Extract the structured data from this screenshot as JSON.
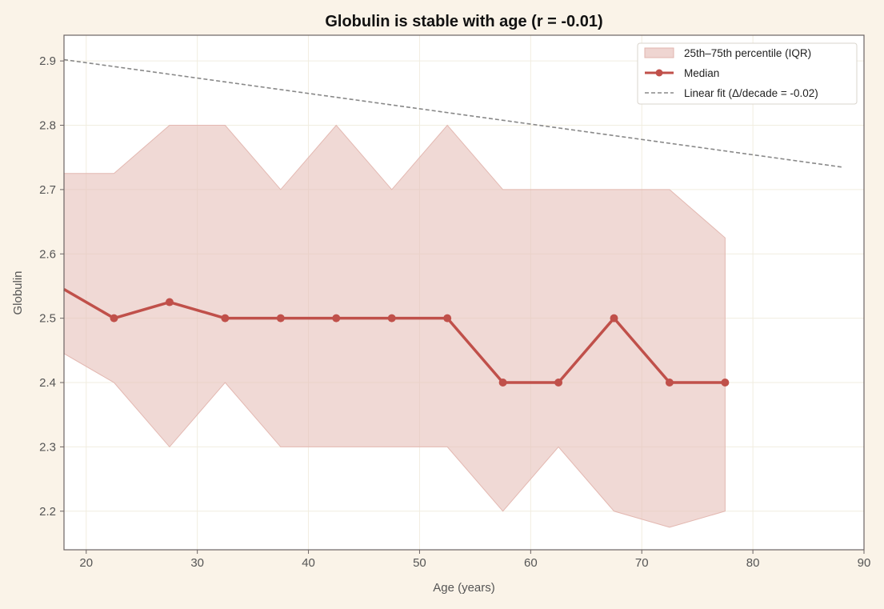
{
  "chart_data": {
    "type": "line",
    "title": "Globulin is stable with age (r = -0.01)",
    "xlabel": "Age (years)",
    "ylabel": "Globulin",
    "xlim": [
      18,
      90
    ],
    "ylim": [
      2.14,
      2.94
    ],
    "xticks": [
      20,
      30,
      40,
      50,
      60,
      70,
      80,
      90
    ],
    "yticks": [
      2.2,
      2.3,
      2.4,
      2.5,
      2.6,
      2.7,
      2.8,
      2.9
    ],
    "grid": true,
    "legend_position": "top-right",
    "colors": {
      "background": "#faf3e8",
      "plot_background": "#ffffff",
      "median": "#c0504a",
      "iqr_fill": "#e6bfb9",
      "fit": "#888888",
      "grid": "#f1ede0",
      "axis": "#6b6363"
    },
    "x": [
      18,
      22.5,
      27.5,
      32.5,
      37.5,
      42.5,
      47.5,
      52.5,
      57.5,
      62.5,
      67.5,
      72.5,
      77.5
    ],
    "series": [
      {
        "name": "25th–75th percentile (IQR)",
        "kind": "band",
        "lower": [
          2.445,
          2.4,
          2.3,
          2.4,
          2.3,
          2.3,
          2.3,
          2.3,
          2.2,
          2.3,
          2.2,
          2.175,
          2.2
        ],
        "upper": [
          2.725,
          2.725,
          2.8,
          2.8,
          2.7,
          2.8,
          2.7,
          2.8,
          2.7,
          2.7,
          2.7,
          2.7,
          2.625
        ]
      },
      {
        "name": "Median",
        "kind": "line",
        "values": [
          2.545,
          2.5,
          2.525,
          2.5,
          2.5,
          2.5,
          2.5,
          2.5,
          2.4,
          2.4,
          2.5,
          2.4,
          2.4
        ]
      },
      {
        "name": "Linear fit (Δ/decade = -0.02)",
        "kind": "fit",
        "x": [
          18,
          88
        ],
        "values": [
          2.902,
          2.735
        ]
      }
    ]
  }
}
